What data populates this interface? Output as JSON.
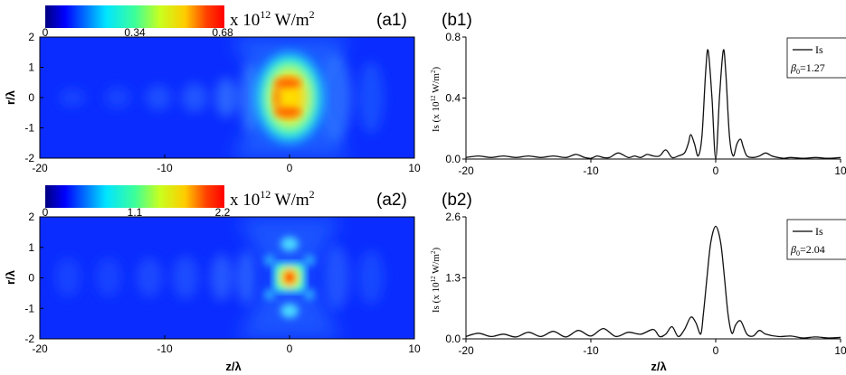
{
  "panels": {
    "a1": {
      "label": "(a1)"
    },
    "a2": {
      "label": "(a2)"
    },
    "b1": {
      "label": "(b1)"
    },
    "b2": {
      "label": "(b2)"
    }
  },
  "colorbars": [
    {
      "ticks": [
        "0",
        "0.34",
        "0.68"
      ],
      "unit_prefix": "x 10",
      "unit_exp": "12",
      "unit_mid": " W/m",
      "unit_exp2": "2"
    },
    {
      "ticks": [
        "0",
        "1.1",
        "2.2"
      ],
      "unit_prefix": "x 10",
      "unit_exp": "12",
      "unit_mid": " W/m",
      "unit_exp2": "2"
    }
  ],
  "colors": {
    "jet_low": "#0000ff",
    "jet_high": "#ff0000",
    "line": "#111111"
  },
  "chart_data": [
    {
      "type": "heatmap",
      "panel": "a1",
      "xlabel": "z/λ",
      "ylabel": "r/λ",
      "xlim": [
        -20,
        10
      ],
      "ylim": [
        -2,
        2
      ],
      "xticks": [
        "-20",
        "-10",
        "0",
        "10"
      ],
      "yticks": [
        "2",
        "1",
        "0",
        "-1",
        "-2"
      ],
      "vmin": 0,
      "vmax": 0.68,
      "peak_z": 0,
      "peak_r": [
        -0.7,
        0.7
      ]
    },
    {
      "type": "heatmap",
      "panel": "a2",
      "xlabel": "z/λ",
      "ylabel": "r/λ",
      "xlim": [
        -20,
        10
      ],
      "ylim": [
        -2,
        2
      ],
      "xticks": [
        "-20",
        "-10",
        "0",
        "10"
      ],
      "yticks": [
        "2",
        "1",
        "0",
        "-1",
        "-2"
      ],
      "vmin": 0,
      "vmax": 2.2,
      "peak_z": 0,
      "peak_r": [
        0
      ]
    },
    {
      "type": "line",
      "panel": "b1",
      "ylabel_main": "Is (x 10",
      "ylabel_exp": "12",
      "ylabel_mid": " W/m",
      "ylabel_exp2": "2",
      "ylabel_end": ")",
      "xlim": [
        -20,
        10
      ],
      "ylim": [
        0,
        0.8
      ],
      "xticks": [
        "-20",
        "-10",
        "0",
        "10"
      ],
      "yticks": [
        "0.0",
        "0.4",
        "0.8"
      ],
      "legend": {
        "series": "Is",
        "param_symbol": "β",
        "param_sub": "0",
        "param_value": "=1.27"
      },
      "legend_position": "top-right",
      "series": [
        {
          "name": "Is",
          "x": [
            -20,
            -19,
            -18,
            -17,
            -16,
            -15,
            -14,
            -13,
            -12,
            -11.2,
            -10.5,
            -10,
            -9.5,
            -9,
            -8.5,
            -7.8,
            -7,
            -6.5,
            -6,
            -5.5,
            -5,
            -4.5,
            -4,
            -3.5,
            -3,
            -2.5,
            -2.2,
            -2,
            -1.7,
            -1.4,
            -1.1,
            -0.8,
            -0.6,
            -0.3,
            0,
            0.3,
            0.6,
            0.8,
            1.1,
            1.4,
            1.7,
            2,
            2.2,
            2.5,
            3,
            3.5,
            4,
            4.5,
            5,
            5.5,
            6,
            7,
            8,
            9,
            10
          ],
          "y": [
            0.01,
            0.02,
            0.01,
            0.02,
            0.01,
            0.02,
            0.01,
            0.02,
            0.01,
            0.03,
            0.01,
            0.005,
            0.02,
            0.01,
            0.01,
            0.04,
            0.01,
            0.02,
            0.01,
            0.03,
            0.02,
            0.02,
            0.06,
            0.01,
            0.02,
            0.04,
            0.1,
            0.16,
            0.1,
            0.02,
            0.15,
            0.58,
            0.71,
            0.4,
            0.0,
            0.4,
            0.71,
            0.58,
            0.15,
            0.02,
            0.1,
            0.13,
            0.08,
            0.02,
            0.01,
            0.02,
            0.04,
            0.02,
            0.01,
            0.005,
            0.01,
            0.005,
            0.01,
            0.005,
            0.01
          ]
        }
      ]
    },
    {
      "type": "line",
      "panel": "b2",
      "ylabel_main": "Is (x 10",
      "ylabel_exp": "12",
      "ylabel_mid": " W/m",
      "ylabel_exp2": "2",
      "ylabel_end": ")",
      "xlim": [
        -20,
        10
      ],
      "ylim": [
        0,
        2.6
      ],
      "xticks": [
        "-20",
        "-10",
        "0",
        "10"
      ],
      "yticks": [
        "0.0",
        "1.3",
        "2.6"
      ],
      "legend": {
        "series": "Is",
        "param_symbol": "β",
        "param_sub": "0",
        "param_value": "=2.04"
      },
      "legend_position": "top-right",
      "series": [
        {
          "name": "Is",
          "x": [
            -20,
            -19,
            -18,
            -17,
            -16,
            -15,
            -14,
            -13,
            -12,
            -11,
            -10,
            -9,
            -8,
            -7,
            -6,
            -5,
            -4.5,
            -4,
            -3.5,
            -3,
            -2.5,
            -2,
            -1.6,
            -1.2,
            -1,
            -0.7,
            -0.4,
            0,
            0.4,
            0.7,
            1,
            1.3,
            1.6,
            2,
            2.5,
            3,
            3.5,
            4,
            5,
            6,
            7,
            8,
            9,
            10
          ],
          "y": [
            0.05,
            0.12,
            0.05,
            0.1,
            0.04,
            0.14,
            0.05,
            0.16,
            0.04,
            0.18,
            0.06,
            0.22,
            0.05,
            0.14,
            0.1,
            0.2,
            0.05,
            0.1,
            0.26,
            0.05,
            0.2,
            0.46,
            0.35,
            0.1,
            0.5,
            1.3,
            2.05,
            2.4,
            2.05,
            1.3,
            0.5,
            0.12,
            0.3,
            0.38,
            0.1,
            0.06,
            0.18,
            0.1,
            0.05,
            0.06,
            0.02,
            0.04,
            0.02,
            0.03
          ]
        }
      ]
    }
  ]
}
